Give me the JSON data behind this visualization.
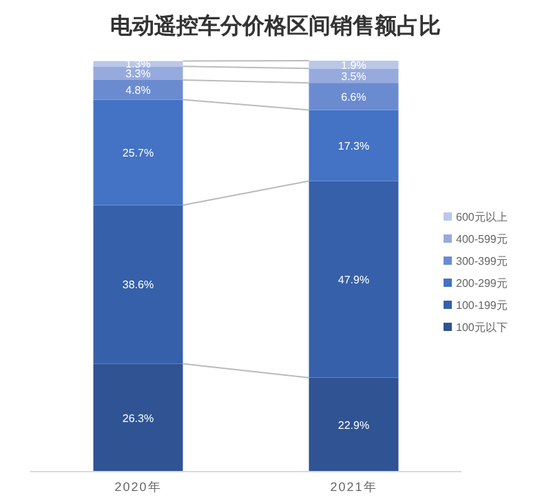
{
  "chart_data": {
    "type": "bar",
    "title": "电动遥控车分价格区间销售额占比",
    "categories": [
      "2020年",
      "2021年"
    ],
    "stacked": true,
    "legend": "right",
    "series": [
      {
        "name": "100元以下",
        "color": "#2f5393",
        "values": [
          26.3,
          22.9
        ],
        "value_labels": [
          "26.3%",
          "22.9%"
        ]
      },
      {
        "name": "100-199元",
        "color": "#3660aa",
        "values": [
          38.6,
          47.9
        ],
        "value_labels": [
          "38.6%",
          "47.9%"
        ]
      },
      {
        "name": "200-299元",
        "color": "#4472c4",
        "values": [
          25.7,
          17.3
        ],
        "value_labels": [
          "25.7%",
          "17.3%"
        ]
      },
      {
        "name": "300-399元",
        "color": "#6b8bd0",
        "values": [
          4.8,
          6.6
        ],
        "value_labels": [
          "4.8%",
          "6.6%"
        ]
      },
      {
        "name": "400-599元",
        "color": "#97aadd",
        "values": [
          3.3,
          3.5
        ],
        "value_labels": [
          "3.3%",
          "3.5%"
        ]
      },
      {
        "name": "600元以上",
        "color": "#bac7e7",
        "values": [
          1.3,
          1.9
        ],
        "value_labels": [
          "1.3%",
          "1.9%"
        ]
      }
    ]
  }
}
